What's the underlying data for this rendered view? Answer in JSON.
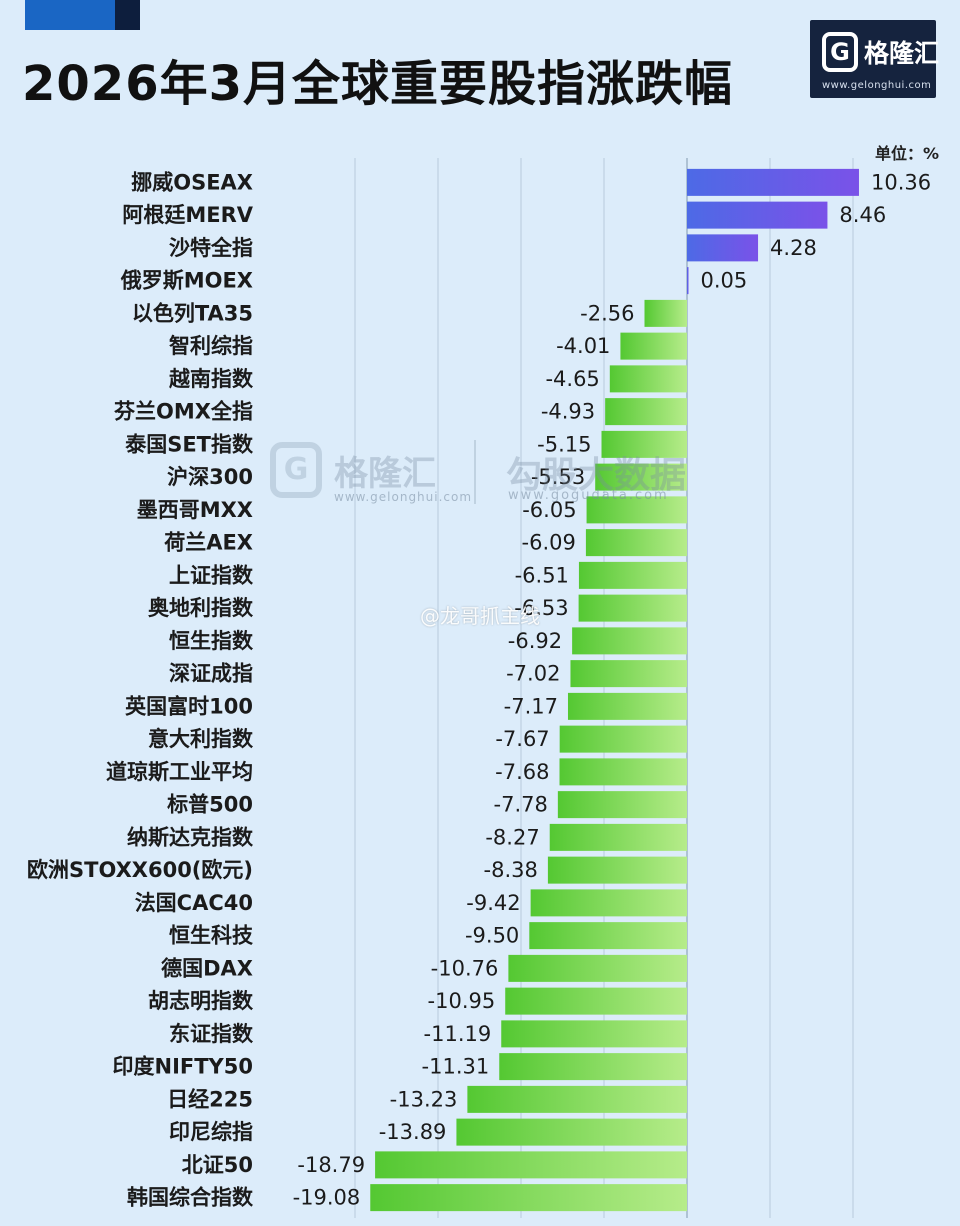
{
  "title": "2026年3月全球重要股指涨跌幅",
  "logo": {
    "mark": "G",
    "brand": "格隆汇",
    "url": "www.gelonghui.com"
  },
  "unit_label": "单位：%",
  "watermarks": {
    "brand": "格隆汇",
    "brand_url": "www.gelonghui.com",
    "data_brand": "勾股大数据",
    "data_url": "www.gogudata.com",
    "weibo": "@龙哥抓主线"
  },
  "colors": {
    "background": "#dcecfa",
    "positive_bar_start": "#7a52e8",
    "positive_bar_end": "#4d6ae6",
    "negative_bar_start": "#b6ec8a",
    "negative_bar_end": "#54c832",
    "accent_blue": "#1a66c4",
    "logo_bg": "#15233e"
  },
  "chart_data": {
    "type": "bar",
    "orientation": "horizontal",
    "title": "2026年3月全球重要股指涨跌幅",
    "unit": "%",
    "xlim": [
      -20,
      10.5
    ],
    "grid": true,
    "categories": [
      "挪威OSEAX",
      "阿根廷MERV",
      "沙特全指",
      "俄罗斯MOEX",
      "以色列TA35",
      "智利综指",
      "越南指数",
      "芬兰OMX全指",
      "泰国SET指数",
      "沪深300",
      "墨西哥MXX",
      "荷兰AEX",
      "上证指数",
      "奥地利指数",
      "恒生指数",
      "深证成指",
      "英国富时100",
      "意大利指数",
      "道琼斯工业平均",
      "标普500",
      "纳斯达克指数",
      "欧洲STOXX600(欧元)",
      "法国CAC40",
      "恒生科技",
      "德国DAX",
      "胡志明指数",
      "东证指数",
      "印度NIFTY50",
      "日经225",
      "印尼综指",
      "北证50",
      "韩国综合指数"
    ],
    "values": [
      10.36,
      8.46,
      4.28,
      0.05,
      -2.56,
      -4.01,
      -4.65,
      -4.93,
      -5.15,
      -5.53,
      -6.05,
      -6.09,
      -6.51,
      -6.53,
      -6.92,
      -7.02,
      -7.17,
      -7.67,
      -7.68,
      -7.78,
      -8.27,
      -8.38,
      -9.42,
      -9.5,
      -10.76,
      -10.95,
      -11.19,
      -11.31,
      -13.23,
      -13.89,
      -18.79,
      -19.08
    ],
    "labels": [
      "10.36",
      "8.46",
      "4.28",
      "0.05",
      "-2.56",
      "-4.01",
      "-4.65",
      "-4.93",
      "-5.15",
      "-5.53",
      "-6.05",
      "-6.09",
      "-6.51",
      "-6.53",
      "-6.92",
      "-7.02",
      "-7.17",
      "-7.67",
      "-7.68",
      "-7.78",
      "-8.27",
      "-8.38",
      "-9.42",
      "-9.50",
      "-10.76",
      "-10.95",
      "-11.19",
      "-11.31",
      "-13.23",
      "-13.89",
      "-18.79",
      "-19.08"
    ]
  }
}
